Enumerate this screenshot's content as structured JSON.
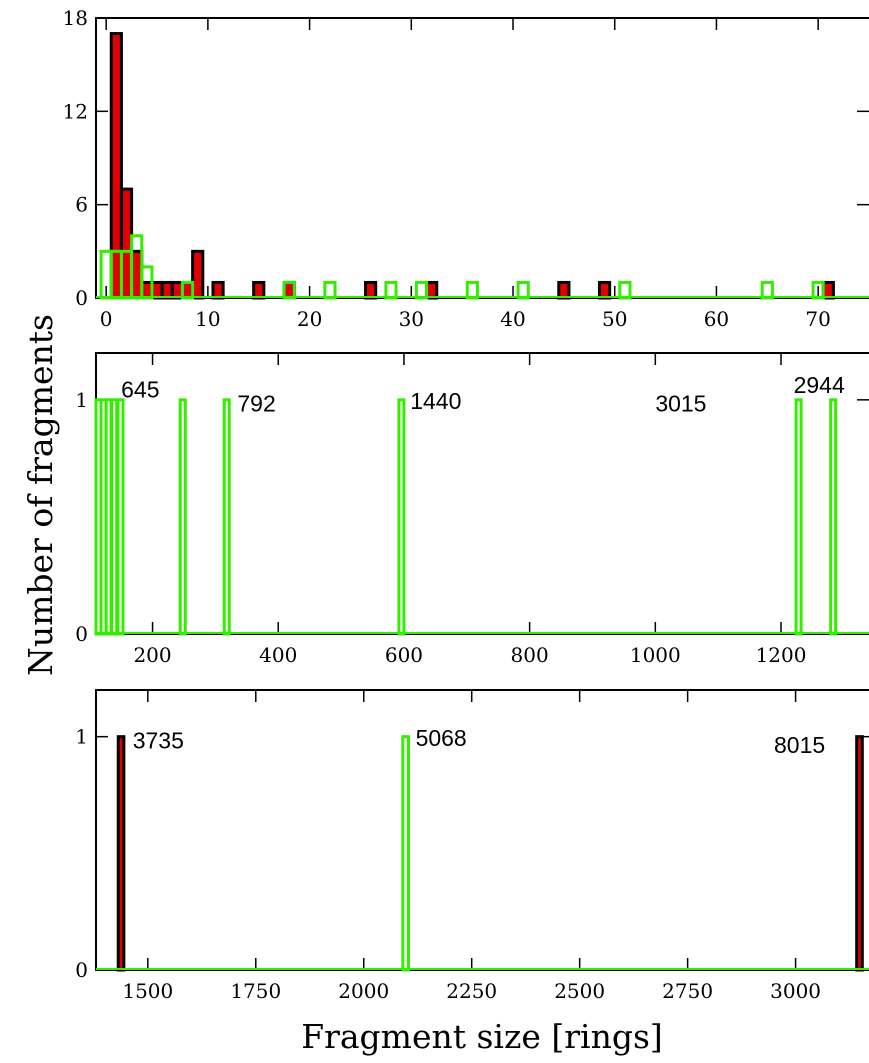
{
  "figure": {
    "ylabel": "Number of fragments",
    "xlabel": "Fragment size [rings]"
  },
  "colors": {
    "filled_fill": "#e00000",
    "filled_edge": "#000000",
    "outline_edge": "#33ee00"
  },
  "chart_data": [
    {
      "type": "bar",
      "panel": "top",
      "xlim": [
        -1,
        75
      ],
      "ylim": [
        0,
        18
      ],
      "xticks": [
        0,
        10,
        20,
        30,
        40,
        50,
        60,
        70
      ],
      "yticks": [
        0,
        6,
        12,
        18
      ],
      "bar_width": 1,
      "series": [
        {
          "style": "filled",
          "x": [
            1,
            2,
            3,
            4,
            5,
            6,
            7,
            8,
            9,
            11,
            15,
            18,
            26,
            32,
            45,
            49,
            71
          ],
          "values": [
            17,
            7,
            3,
            1,
            1,
            1,
            1,
            1,
            3,
            1,
            1,
            1,
            1,
            1,
            1,
            1,
            1
          ]
        },
        {
          "style": "outline",
          "x": [
            0,
            1,
            2,
            3,
            4,
            8,
            18,
            22,
            28,
            31,
            36,
            41,
            51,
            65,
            70
          ],
          "values": [
            3,
            3,
            3,
            4,
            2,
            1,
            1,
            1,
            1,
            1,
            1,
            1,
            1,
            1,
            1
          ]
        }
      ],
      "annotations": []
    },
    {
      "type": "bar",
      "panel": "middle",
      "xlim": [
        110,
        1340
      ],
      "ylim": [
        0,
        1.2
      ],
      "xticks": [
        200,
        400,
        600,
        800,
        1000,
        1200
      ],
      "yticks": [
        0,
        1
      ],
      "bar_width": 8,
      "series": [
        {
          "style": "outline",
          "x": [
            114,
            122,
            130,
            139,
            149,
            248,
            318,
            596,
            1228,
            1283
          ],
          "values": [
            1,
            1,
            1,
            1,
            1,
            1,
            1,
            1,
            1,
            1
          ]
        }
      ],
      "annotations": [
        {
          "text": "645",
          "x": 150,
          "y": 1.01
        },
        {
          "text": "792",
          "x": 335,
          "y": 0.95
        },
        {
          "text": "1440",
          "x": 610,
          "y": 0.96
        },
        {
          "text": "3015",
          "x": 1000,
          "y": 0.95
        },
        {
          "text": "2944",
          "x": 1220,
          "y": 1.03
        }
      ]
    },
    {
      "type": "bar",
      "panel": "bottom",
      "xlim": [
        1380,
        3170
      ],
      "ylim": [
        0,
        1.2
      ],
      "xticks": [
        1500,
        1750,
        2000,
        2250,
        2500,
        2750,
        3000
      ],
      "yticks": [
        0,
        1
      ],
      "bar_width": 13,
      "series": [
        {
          "style": "filled",
          "x": [
            1438,
            3148
          ],
          "values": [
            1,
            1
          ]
        },
        {
          "style": "outline",
          "x": [
            2097
          ],
          "values": [
            1
          ]
        }
      ],
      "annotations": [
        {
          "text": "3735",
          "x": 1465,
          "y": 0.95
        },
        {
          "text": "5068",
          "x": 2120,
          "y": 0.96
        },
        {
          "text": "8015",
          "x": 2950,
          "y": 0.93
        }
      ]
    }
  ]
}
